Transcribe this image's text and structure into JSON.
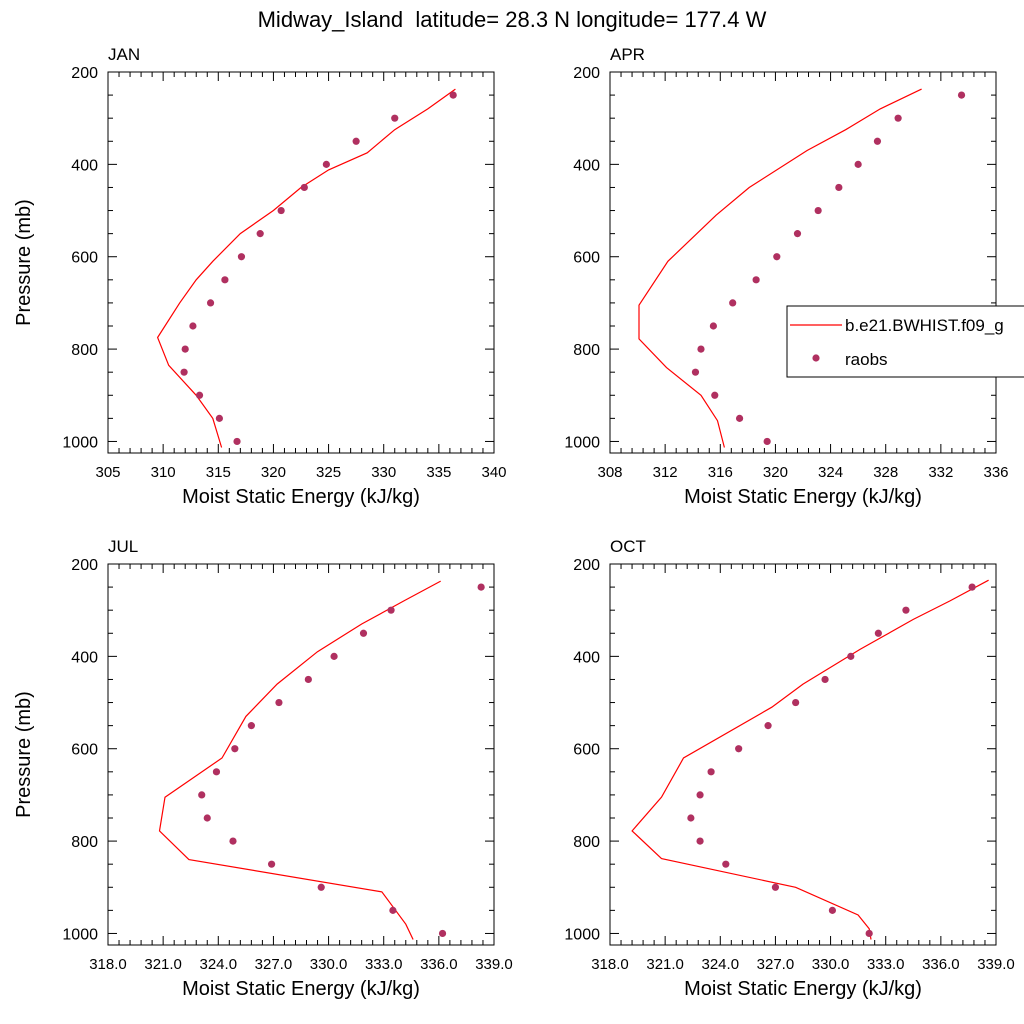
{
  "title": "Midway_Island  latitude= 28.3 N longitude= 177.4 W",
  "colors": {
    "model_line": "#ff0000",
    "obs_marker": "#b03060",
    "axis": "#000000"
  },
  "legend": {
    "placement": "right edge, overlapping APR panel",
    "entries": [
      {
        "label": "b.e21.BWHIST.f09_g",
        "kind": "line"
      },
      {
        "label": "raobs",
        "kind": "marker"
      }
    ]
  },
  "chart_data": [
    {
      "type": "line",
      "panel": "JAN",
      "xlabel": "Moist Static Energy (kJ/kg)",
      "ylabel": "Pressure (mb)",
      "xlim": [
        305,
        340
      ],
      "ylim": [
        1025,
        200
      ],
      "y_inverted": true,
      "xticks": [
        305,
        310,
        315,
        320,
        325,
        330,
        335,
        340
      ],
      "xtick_labels": [
        "305",
        "310",
        "315",
        "320",
        "325",
        "330",
        "335",
        "340"
      ],
      "yticks": [
        200,
        400,
        600,
        800,
        1000
      ],
      "series": [
        {
          "name": "b.e21.BWHIST.f09_g",
          "kind": "line",
          "x": [
            336.5,
            334.0,
            331.0,
            328.5,
            325.0,
            322.5,
            320.0,
            317.0,
            314.5,
            313.0,
            311.5,
            309.5,
            310.5,
            313.0,
            314.5,
            315.3
          ],
          "y": [
            237,
            280,
            325,
            375,
            412,
            450,
            500,
            550,
            610,
            650,
            700,
            775,
            835,
            900,
            950,
            1013
          ]
        },
        {
          "name": "raobs",
          "kind": "scatter",
          "x": [
            336.3,
            331.0,
            327.5,
            324.8,
            322.8,
            320.7,
            318.8,
            317.1,
            315.6,
            314.3,
            312.7,
            312.0,
            311.9,
            313.3,
            315.1,
            316.7
          ],
          "y": [
            250,
            300,
            350,
            400,
            450,
            500,
            550,
            600,
            650,
            700,
            750,
            800,
            850,
            900,
            950,
            1000
          ]
        }
      ]
    },
    {
      "type": "line",
      "panel": "APR",
      "xlabel": "Moist Static Energy (kJ/kg)",
      "ylabel": "",
      "xlim": [
        308,
        336
      ],
      "ylim": [
        1025,
        200
      ],
      "y_inverted": true,
      "xticks": [
        308,
        312,
        316,
        320,
        324,
        328,
        332,
        336
      ],
      "xtick_labels": [
        "308",
        "312",
        "316",
        "320",
        "324",
        "328",
        "332",
        "336"
      ],
      "yticks": [
        200,
        400,
        600,
        800,
        1000
      ],
      "series": [
        {
          "name": "b.e21.BWHIST.f09_g",
          "kind": "line",
          "x": [
            330.6,
            327.6,
            325.1,
            322.3,
            318.1,
            315.7,
            312.2,
            310.1,
            310.1,
            312.1,
            314.6,
            315.8,
            316.3
          ],
          "y": [
            237,
            280,
            325,
            370,
            450,
            510,
            610,
            705,
            778,
            840,
            900,
            955,
            1013
          ]
        },
        {
          "name": "raobs",
          "kind": "scatter",
          "x": [
            333.5,
            328.9,
            327.4,
            326.0,
            324.6,
            323.1,
            321.6,
            320.1,
            318.6,
            316.9,
            315.5,
            314.6,
            314.2,
            315.6,
            317.4,
            319.4
          ],
          "y": [
            250,
            300,
            350,
            400,
            450,
            500,
            550,
            600,
            650,
            700,
            750,
            800,
            850,
            900,
            950,
            1000
          ]
        }
      ]
    },
    {
      "type": "line",
      "panel": "JUL",
      "xlabel": "Moist Static Energy (kJ/kg)",
      "ylabel": "Pressure (mb)",
      "xlim": [
        318,
        339
      ],
      "ylim": [
        1025,
        200
      ],
      "y_inverted": true,
      "xticks": [
        318,
        321,
        324,
        327,
        330,
        333,
        336,
        339
      ],
      "xtick_labels": [
        "318.0",
        "321.0",
        "324.0",
        "327.0",
        "330.0",
        "333.0",
        "336.0",
        "339.0"
      ],
      "yticks": [
        200,
        400,
        600,
        800,
        1000
      ],
      "series": [
        {
          "name": "b.e21.BWHIST.f09_g",
          "kind": "line",
          "x": [
            336.1,
            334.1,
            331.8,
            329.4,
            327.2,
            325.5,
            324.2,
            321.1,
            320.8,
            322.4,
            332.9,
            334.2,
            334.6
          ],
          "y": [
            237,
            280,
            330,
            390,
            460,
            530,
            620,
            705,
            778,
            840,
            910,
            980,
            1013
          ]
        },
        {
          "name": "raobs",
          "kind": "scatter",
          "x": [
            338.3,
            333.4,
            331.9,
            330.3,
            328.9,
            327.3,
            325.8,
            324.9,
            323.9,
            323.1,
            323.4,
            324.8,
            326.9,
            329.6,
            333.5,
            336.2
          ],
          "y": [
            250,
            300,
            350,
            400,
            450,
            500,
            550,
            600,
            650,
            700,
            750,
            800,
            850,
            900,
            950,
            1000
          ]
        }
      ]
    },
    {
      "type": "line",
      "panel": "OCT",
      "xlabel": "Moist Static Energy (kJ/kg)",
      "ylabel": "",
      "xlim": [
        318,
        339
      ],
      "ylim": [
        1025,
        200
      ],
      "y_inverted": true,
      "xticks": [
        318,
        321,
        324,
        327,
        330,
        333,
        336,
        339
      ],
      "xtick_labels": [
        "318.0",
        "321.0",
        "324.0",
        "327.0",
        "330.0",
        "333.0",
        "336.0",
        "339.0"
      ],
      "yticks": [
        200,
        400,
        600,
        800,
        1000
      ],
      "series": [
        {
          "name": "b.e21.BWHIST.f09_g",
          "kind": "line",
          "x": [
            338.6,
            336.5,
            334.5,
            331.6,
            328.5,
            326.8,
            322.0,
            320.8,
            319.2,
            320.8,
            328.1,
            331.5,
            332.1,
            332.2
          ],
          "y": [
            235,
            280,
            320,
            385,
            460,
            510,
            620,
            705,
            778,
            838,
            900,
            960,
            990,
            1013
          ]
        },
        {
          "name": "raobs",
          "kind": "scatter",
          "x": [
            337.7,
            334.1,
            332.6,
            331.1,
            329.7,
            328.1,
            326.6,
            325.0,
            323.5,
            322.9,
            322.4,
            322.9,
            324.3,
            327.0,
            330.1,
            332.1
          ],
          "y": [
            250,
            300,
            350,
            400,
            450,
            500,
            550,
            600,
            650,
            700,
            750,
            800,
            850,
            900,
            950,
            1000
          ]
        }
      ]
    }
  ]
}
